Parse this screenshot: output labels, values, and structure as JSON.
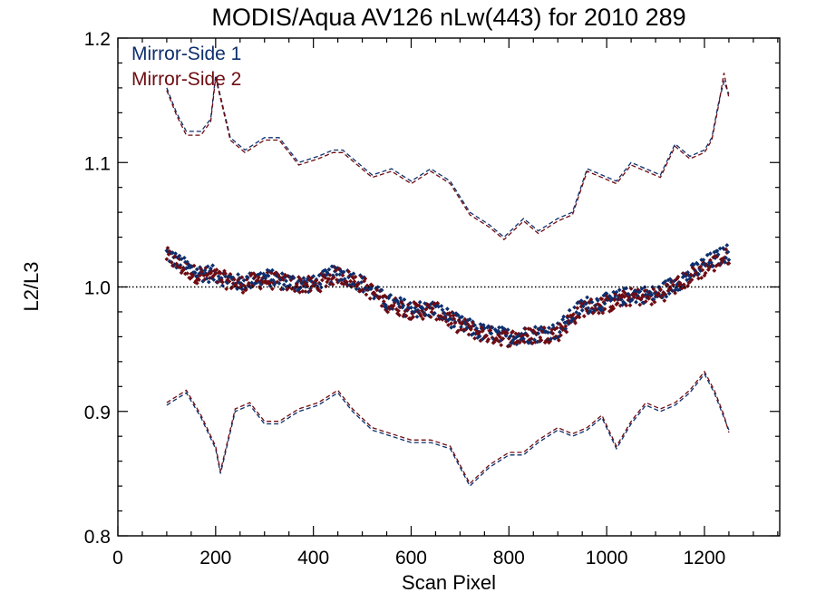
{
  "chart_data": {
    "type": "scatter",
    "title": "MODIS/Aqua AV126 nLw(443) for 2010 289",
    "xlabel": "Scan Pixel",
    "ylabel": "L2/L3",
    "xlim": [
      0,
      1354
    ],
    "ylim": [
      0.8,
      1.2
    ],
    "xticks": [
      0,
      200,
      400,
      600,
      800,
      1000,
      1200
    ],
    "xtick_labels": [
      "0",
      "200",
      "400",
      "600",
      "800",
      "1000",
      "1200"
    ],
    "yticks": [
      0.8,
      0.9,
      1.0,
      1.1,
      1.2
    ],
    "ytick_labels": [
      "0.8",
      "0.9",
      "1.0",
      "1.1",
      "1.2"
    ],
    "x_minor_step": 50,
    "y_minor_step": 0.02,
    "reference_line": 1.0,
    "legend_position": "top-left",
    "colors": {
      "ms1": "#0d2f6e",
      "ms2": "#6e0c12"
    },
    "series": [
      {
        "name": "Mirror-Side 1",
        "color": "#0d2f6e",
        "median_x": [
          100,
          130,
          160,
          200,
          250,
          300,
          350,
          400,
          450,
          500,
          550,
          600,
          650,
          700,
          750,
          800,
          850,
          900,
          950,
          1000,
          1050,
          1100,
          1150,
          1200,
          1250
        ],
        "median_y": [
          1.027,
          1.018,
          1.012,
          1.01,
          1.003,
          1.008,
          1.004,
          1.002,
          1.012,
          1.003,
          0.988,
          0.982,
          0.982,
          0.97,
          0.963,
          0.96,
          0.962,
          0.965,
          0.985,
          0.988,
          0.994,
          0.994,
          1.005,
          1.018,
          1.028
        ],
        "upper_x": [
          100,
          120,
          140,
          170,
          190,
          200,
          230,
          260,
          300,
          330,
          370,
          410,
          440,
          460,
          490,
          520,
          560,
          600,
          640,
          680,
          720,
          760,
          790,
          830,
          860,
          900,
          930,
          960,
          990,
          1020,
          1050,
          1080,
          1110,
          1140,
          1170,
          1200,
          1215,
          1230,
          1240,
          1250
        ],
        "upper_y": [
          1.16,
          1.14,
          1.125,
          1.125,
          1.135,
          1.17,
          1.12,
          1.11,
          1.12,
          1.12,
          1.1,
          1.105,
          1.11,
          1.11,
          1.1,
          1.09,
          1.095,
          1.085,
          1.095,
          1.085,
          1.06,
          1.05,
          1.04,
          1.055,
          1.045,
          1.055,
          1.06,
          1.095,
          1.09,
          1.085,
          1.1,
          1.095,
          1.09,
          1.115,
          1.105,
          1.11,
          1.12,
          1.15,
          1.165,
          1.155
        ],
        "lower_x": [
          100,
          120,
          140,
          170,
          200,
          210,
          240,
          270,
          300,
          330,
          370,
          410,
          450,
          480,
          520,
          560,
          600,
          640,
          680,
          700,
          720,
          760,
          800,
          830,
          860,
          900,
          930,
          960,
          990,
          1020,
          1050,
          1080,
          1110,
          1140,
          1170,
          1200,
          1220,
          1240,
          1250
        ],
        "lower_y": [
          0.905,
          0.91,
          0.915,
          0.895,
          0.87,
          0.85,
          0.9,
          0.905,
          0.89,
          0.89,
          0.9,
          0.905,
          0.915,
          0.9,
          0.885,
          0.88,
          0.875,
          0.875,
          0.87,
          0.855,
          0.84,
          0.855,
          0.865,
          0.865,
          0.875,
          0.885,
          0.88,
          0.885,
          0.895,
          0.87,
          0.89,
          0.905,
          0.9,
          0.905,
          0.915,
          0.93,
          0.915,
          0.895,
          0.885
        ]
      },
      {
        "name": "Mirror-Side 2",
        "color": "#6e0c12",
        "median_x": [
          100,
          130,
          160,
          200,
          250,
          300,
          350,
          400,
          450,
          500,
          550,
          600,
          650,
          700,
          750,
          800,
          850,
          900,
          950,
          1000,
          1050,
          1100,
          1150,
          1200,
          1250
        ],
        "median_y": [
          1.025,
          1.016,
          1.01,
          1.008,
          1.002,
          1.006,
          1.003,
          1.001,
          1.01,
          1.002,
          0.987,
          0.981,
          0.981,
          0.969,
          0.962,
          0.959,
          0.961,
          0.963,
          0.983,
          0.986,
          0.992,
          0.992,
          1.003,
          1.015,
          1.025
        ],
        "upper_x": [
          100,
          120,
          140,
          170,
          190,
          200,
          230,
          260,
          300,
          330,
          370,
          410,
          440,
          460,
          490,
          520,
          560,
          600,
          640,
          680,
          720,
          760,
          790,
          830,
          860,
          900,
          930,
          960,
          990,
          1020,
          1050,
          1080,
          1110,
          1140,
          1170,
          1200,
          1215,
          1230,
          1240,
          1250
        ],
        "upper_y": [
          1.158,
          1.138,
          1.122,
          1.122,
          1.133,
          1.168,
          1.118,
          1.108,
          1.118,
          1.118,
          1.098,
          1.103,
          1.108,
          1.108,
          1.098,
          1.088,
          1.093,
          1.083,
          1.093,
          1.083,
          1.058,
          1.048,
          1.038,
          1.053,
          1.043,
          1.053,
          1.058,
          1.093,
          1.088,
          1.083,
          1.098,
          1.093,
          1.088,
          1.113,
          1.103,
          1.108,
          1.118,
          1.148,
          1.172,
          1.152
        ],
        "lower_x": [
          100,
          120,
          140,
          170,
          200,
          210,
          240,
          270,
          300,
          330,
          370,
          410,
          450,
          480,
          520,
          560,
          600,
          640,
          680,
          700,
          720,
          760,
          800,
          830,
          860,
          900,
          930,
          960,
          990,
          1020,
          1050,
          1080,
          1110,
          1140,
          1170,
          1200,
          1220,
          1240,
          1250
        ],
        "lower_y": [
          0.907,
          0.912,
          0.917,
          0.897,
          0.872,
          0.852,
          0.902,
          0.907,
          0.892,
          0.892,
          0.902,
          0.907,
          0.917,
          0.902,
          0.887,
          0.882,
          0.877,
          0.877,
          0.872,
          0.857,
          0.842,
          0.857,
          0.867,
          0.867,
          0.877,
          0.887,
          0.882,
          0.887,
          0.897,
          0.872,
          0.892,
          0.907,
          0.902,
          0.907,
          0.917,
          0.932,
          0.917,
          0.897,
          0.883
        ]
      }
    ]
  }
}
